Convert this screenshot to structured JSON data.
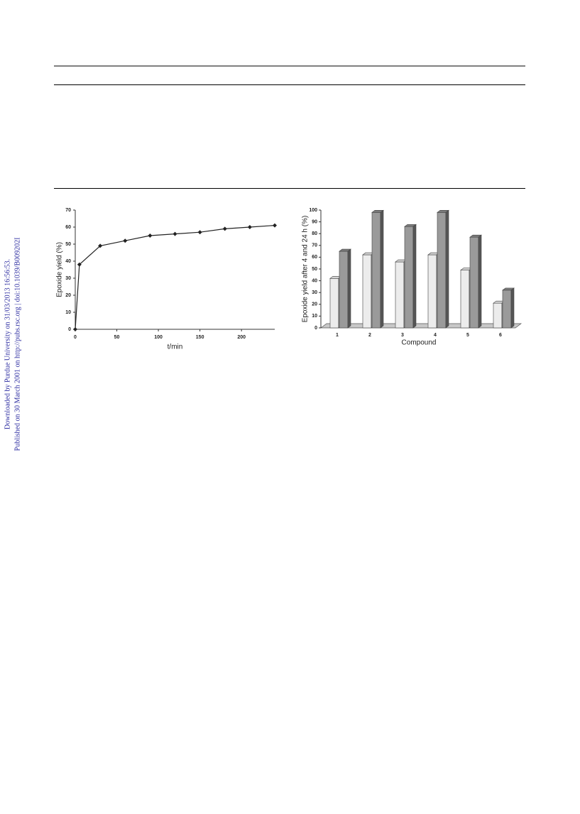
{
  "sidebar": {
    "downloaded": "Downloaded by Purdue University on 31/03/2013 16:56:53.",
    "published": "Published on 30 March 2001 on http://pubs.rsc.org | doi:10.1039/B009202I"
  },
  "chart_data": [
    {
      "type": "line",
      "y_label": "Epoxide yield (%)",
      "x_label": "t/min",
      "x": [
        0,
        5,
        30,
        60,
        90,
        120,
        150,
        180,
        210,
        240
      ],
      "values": [
        0,
        38,
        49,
        52,
        55,
        56,
        57,
        59,
        60,
        61
      ],
      "color": "#222222",
      "xlim": [
        0,
        240
      ],
      "xticks": [
        0,
        50,
        100,
        150,
        200
      ],
      "ylim": [
        0,
        70
      ],
      "yticks": [
        0,
        10,
        20,
        30,
        40,
        50,
        60,
        70
      ]
    },
    {
      "type": "bar",
      "y_label": "Epoxide yield after 4 and 24 h (%)",
      "x_label": "Compound",
      "categories": [
        "1",
        "2",
        "3",
        "4",
        "5",
        "6"
      ],
      "series": [
        {
          "color": "#ececec",
          "values": [
            42,
            62,
            56,
            62,
            49,
            21
          ]
        },
        {
          "color": "#9a9a9a",
          "values": [
            65,
            98,
            86,
            98,
            77,
            32
          ]
        }
      ],
      "ylim": [
        0,
        100
      ],
      "yticks": [
        0,
        10,
        20,
        30,
        40,
        50,
        60,
        70,
        80,
        90,
        100
      ]
    }
  ]
}
